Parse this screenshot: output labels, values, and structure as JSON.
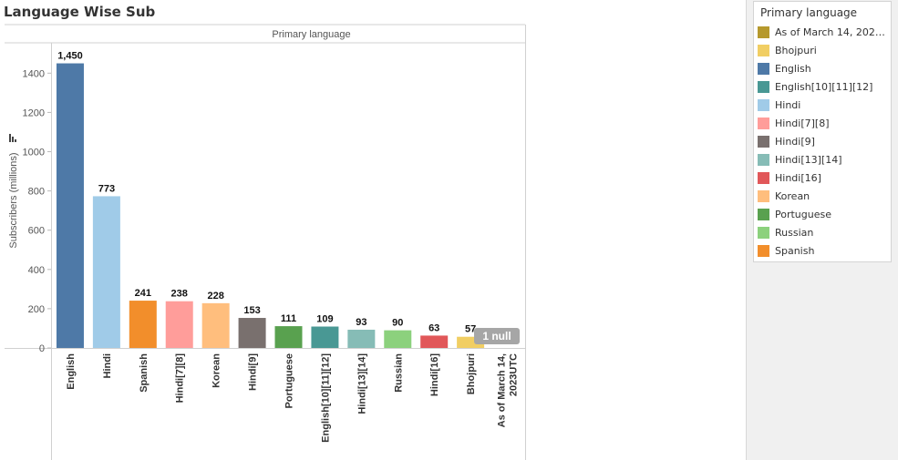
{
  "title": "Language Wise Sub",
  "chart_data": {
    "type": "bar",
    "header": "Primary language",
    "ylabel": "Subscribers (millions)",
    "ylim": [
      0,
      1550
    ],
    "yticks": [
      0,
      200,
      400,
      600,
      800,
      1000,
      1200,
      1400
    ],
    "ytick_labels": [
      "0",
      "200",
      "400",
      "600",
      "800",
      "1000",
      "1200",
      "1400"
    ],
    "categories": [
      "English",
      "Hindi",
      "Spanish",
      "Hindi[7][8]",
      "Korean",
      "Hindi[9]",
      "Portuguese",
      "English[10][11][12]",
      "Hindi[13][14]",
      "Russian",
      "Hindi[16]",
      "Bhojpuri",
      "As of March 14, 2023UTC"
    ],
    "category_lines": [
      [
        "English"
      ],
      [
        "Hindi"
      ],
      [
        "Spanish"
      ],
      [
        "Hindi[7][8]"
      ],
      [
        "Korean"
      ],
      [
        "Hindi[9]"
      ],
      [
        "Portuguese"
      ],
      [
        "English[10][11][12]"
      ],
      [
        "Hindi[13][14]"
      ],
      [
        "Russian"
      ],
      [
        "Hindi[16]"
      ],
      [
        "Bhojpuri"
      ],
      [
        "As of March 14,",
        "2023UTC"
      ]
    ],
    "values": [
      1450,
      773,
      241,
      238,
      228,
      153,
      111,
      109,
      93,
      90,
      63,
      57,
      null
    ],
    "value_labels": [
      "1,450",
      "773",
      "241",
      "238",
      "228",
      "153",
      "111",
      "109",
      "93",
      "90",
      "63",
      "57",
      ""
    ],
    "colors": [
      "#4e79a7",
      "#a0cbe8",
      "#f28e2b",
      "#ff9d9a",
      "#ffbe7d",
      "#79706e",
      "#59a14f",
      "#499894",
      "#86bcb6",
      "#8cd17d",
      "#e15759",
      "#f1ce63",
      "#b6992d"
    ],
    "null_indicator": "1 null",
    "legend": {
      "title": "Primary language",
      "placement": "right",
      "entries": [
        {
          "label": "As of March 14, 2023UT..",
          "color": "#b6992d"
        },
        {
          "label": "Bhojpuri",
          "color": "#f1ce63"
        },
        {
          "label": "English",
          "color": "#4e79a7"
        },
        {
          "label": "English[10][11][12]",
          "color": "#499894"
        },
        {
          "label": "Hindi",
          "color": "#a0cbe8"
        },
        {
          "label": "Hindi[7][8]",
          "color": "#ff9d9a"
        },
        {
          "label": "Hindi[9]",
          "color": "#79706e"
        },
        {
          "label": "Hindi[13][14]",
          "color": "#86bcb6"
        },
        {
          "label": "Hindi[16]",
          "color": "#e15759"
        },
        {
          "label": "Korean",
          "color": "#ffbe7d"
        },
        {
          "label": "Portuguese",
          "color": "#59a14f"
        },
        {
          "label": "Russian",
          "color": "#8cd17d"
        },
        {
          "label": "Spanish",
          "color": "#f28e2b"
        }
      ]
    }
  }
}
